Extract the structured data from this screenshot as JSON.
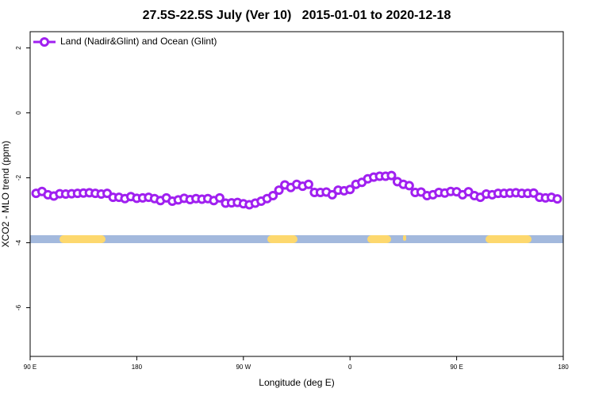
{
  "chart_data": {
    "type": "line",
    "title": "27.5S-22.5S July (Ver 10)   2015-01-01 to 2020-12-18",
    "x_label": "Longitude (deg E)",
    "y_label": "XCO2 - MLO trend (ppm)",
    "xlim": [
      90,
      540
    ],
    "ylim": [
      -7.5,
      2.5
    ],
    "xticks": [
      {
        "value": 90,
        "label": "90 E"
      },
      {
        "value": 180,
        "label": "180"
      },
      {
        "value": 270,
        "label": "90 W"
      },
      {
        "value": 360,
        "label": "0"
      },
      {
        "value": 450,
        "label": "90 E"
      },
      {
        "value": 540,
        "label": "180"
      }
    ],
    "yticks": [
      -6,
      -4,
      -2,
      0,
      2
    ],
    "legend_position": "top-left",
    "x": [
      95,
      100,
      105,
      110,
      115,
      120,
      125,
      130,
      135,
      140,
      145,
      150,
      155,
      160,
      165,
      170,
      175,
      180,
      185,
      190,
      195,
      200,
      205,
      210,
      215,
      220,
      225,
      230,
      235,
      240,
      245,
      250,
      255,
      260,
      265,
      270,
      275,
      280,
      285,
      290,
      295,
      300,
      305,
      310,
      315,
      320,
      325,
      330,
      335,
      340,
      345,
      350,
      355,
      360,
      365,
      370,
      375,
      380,
      385,
      390,
      395,
      400,
      405,
      410,
      415,
      420,
      425,
      430,
      435,
      440,
      445,
      450,
      455,
      460,
      465,
      470,
      475,
      480,
      485,
      490,
      495,
      500,
      505,
      510,
      515,
      520,
      525,
      530,
      535
    ],
    "series": [
      {
        "name": "Land (Nadir&Glint) and Ocean (Glint)",
        "color": "#a020f0",
        "values": [
          -2.48,
          -2.42,
          -2.52,
          -2.56,
          -2.49,
          -2.5,
          -2.49,
          -2.48,
          -2.47,
          -2.46,
          -2.48,
          -2.5,
          -2.48,
          -2.6,
          -2.6,
          -2.64,
          -2.58,
          -2.63,
          -2.62,
          -2.6,
          -2.64,
          -2.7,
          -2.62,
          -2.72,
          -2.68,
          -2.63,
          -2.67,
          -2.64,
          -2.66,
          -2.64,
          -2.7,
          -2.62,
          -2.78,
          -2.77,
          -2.76,
          -2.8,
          -2.83,
          -2.78,
          -2.72,
          -2.64,
          -2.55,
          -2.38,
          -2.22,
          -2.3,
          -2.2,
          -2.26,
          -2.2,
          -2.45,
          -2.45,
          -2.44,
          -2.52,
          -2.38,
          -2.4,
          -2.36,
          -2.2,
          -2.14,
          -2.03,
          -1.98,
          -1.95,
          -1.95,
          -1.93,
          -2.12,
          -2.2,
          -2.24,
          -2.45,
          -2.44,
          -2.55,
          -2.52,
          -2.45,
          -2.47,
          -2.42,
          -2.43,
          -2.52,
          -2.43,
          -2.55,
          -2.6,
          -2.5,
          -2.52,
          -2.48,
          -2.48,
          -2.47,
          -2.46,
          -2.48,
          -2.48,
          -2.47,
          -2.6,
          -2.62,
          -2.6,
          -2.65
        ]
      }
    ]
  }
}
